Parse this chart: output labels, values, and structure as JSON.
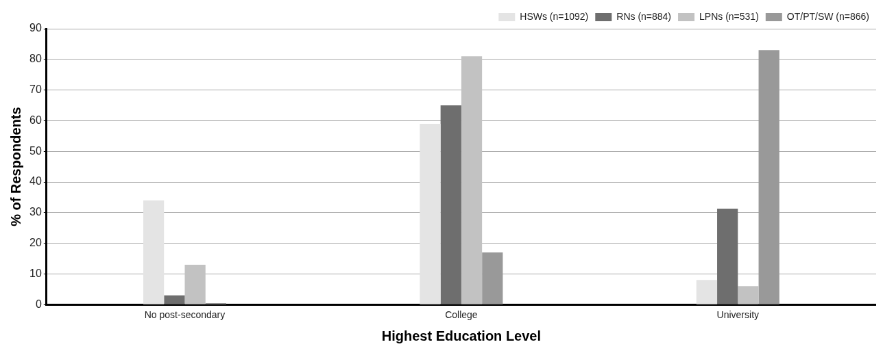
{
  "chart_data": {
    "type": "bar",
    "xlabel": "Highest Education Level",
    "ylabel": "% of Respondents",
    "categories": [
      "No post-secondary",
      "College",
      "University"
    ],
    "series": [
      {
        "name": "HSWs (n=1092)",
        "color": "#e4e4e4",
        "values": [
          34,
          59,
          8
        ]
      },
      {
        "name": "RNs (n=884)",
        "color": "#6e6e6e",
        "values": [
          3,
          65,
          31.3
        ]
      },
      {
        "name": "LPNs (n=531)",
        "color": "#c2c2c2",
        "values": [
          13,
          81,
          6
        ]
      },
      {
        "name": "OT/PT/SW (n=866)",
        "color": "#999999",
        "values": [
          0.5,
          17,
          83
        ]
      }
    ],
    "ylim": [
      0,
      90
    ],
    "yticks": [
      0,
      10,
      20,
      30,
      40,
      50,
      60,
      70,
      80,
      90
    ],
    "grid": "y",
    "legend": "top right"
  }
}
